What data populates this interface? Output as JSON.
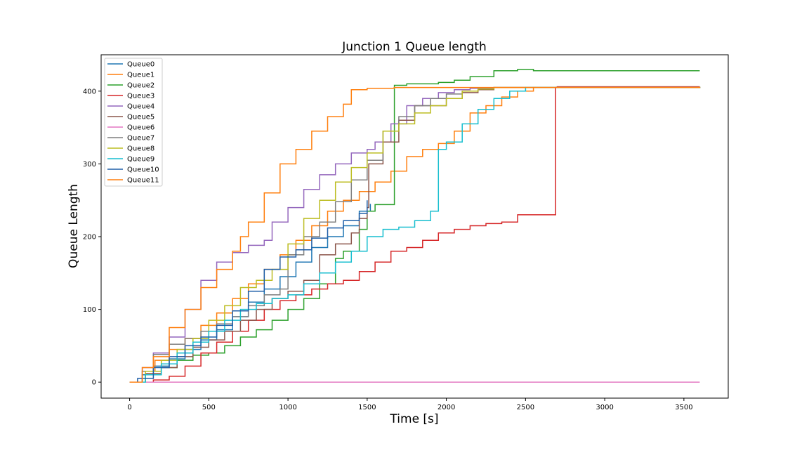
{
  "chart_data": {
    "type": "line",
    "title": "Junction 1 Queue length",
    "xlabel": "Time [s]",
    "ylabel": "Queue Length",
    "xlim": [
      -180,
      3780
    ],
    "ylim": [
      -22,
      450
    ],
    "xticks": [
      0,
      500,
      1000,
      1500,
      2000,
      2500,
      3000,
      3500
    ],
    "yticks": [
      0,
      100,
      200,
      300,
      400
    ],
    "legend_position": "upper left",
    "series": [
      {
        "name": "Queue0",
        "color": "#1f77b4",
        "points": [
          [
            0,
            0
          ],
          [
            80,
            10
          ],
          [
            150,
            22
          ],
          [
            250,
            32
          ],
          [
            350,
            45
          ],
          [
            450,
            58
          ],
          [
            550,
            72
          ],
          [
            650,
            90
          ],
          [
            750,
            110
          ],
          [
            850,
            128
          ],
          [
            950,
            145
          ],
          [
            1050,
            165
          ],
          [
            1150,
            185
          ],
          [
            1250,
            200
          ],
          [
            1350,
            215
          ],
          [
            1450,
            235
          ],
          [
            1520,
            245
          ]
        ]
      },
      {
        "name": "Queue1",
        "color": "#ff7f0e",
        "points": [
          [
            0,
            0
          ],
          [
            80,
            15
          ],
          [
            160,
            30
          ],
          [
            250,
            45
          ],
          [
            350,
            60
          ],
          [
            450,
            78
          ],
          [
            550,
            95
          ],
          [
            650,
            115
          ],
          [
            750,
            135
          ],
          [
            850,
            155
          ],
          [
            950,
            175
          ],
          [
            1050,
            195
          ],
          [
            1150,
            215
          ],
          [
            1250,
            235
          ],
          [
            1350,
            250
          ],
          [
            1450,
            262
          ],
          [
            1550,
            275
          ],
          [
            1650,
            290
          ],
          [
            1750,
            310
          ],
          [
            1850,
            320
          ],
          [
            1950,
            328
          ],
          [
            2050,
            345
          ],
          [
            2150,
            370
          ],
          [
            2250,
            380
          ],
          [
            2350,
            392
          ],
          [
            2450,
            400
          ],
          [
            2550,
            405
          ],
          [
            2700,
            406
          ],
          [
            3600,
            406
          ]
        ]
      },
      {
        "name": "Queue2",
        "color": "#2ca02c",
        "points": [
          [
            0,
            0
          ],
          [
            100,
            10
          ],
          [
            200,
            20
          ],
          [
            300,
            30
          ],
          [
            400,
            37
          ],
          [
            500,
            40
          ],
          [
            600,
            50
          ],
          [
            700,
            62
          ],
          [
            800,
            72
          ],
          [
            900,
            85
          ],
          [
            1000,
            100
          ],
          [
            1100,
            115
          ],
          [
            1200,
            135
          ],
          [
            1300,
            170
          ],
          [
            1350,
            180
          ],
          [
            1450,
            210
          ],
          [
            1500,
            235
          ],
          [
            1550,
            244
          ],
          [
            1660,
            244
          ],
          [
            1672,
            408
          ],
          [
            1750,
            410
          ],
          [
            1850,
            410
          ],
          [
            1950,
            412
          ],
          [
            2050,
            415
          ],
          [
            2150,
            420
          ],
          [
            2250,
            420
          ],
          [
            2300,
            428
          ],
          [
            2450,
            430
          ],
          [
            2550,
            428
          ],
          [
            3600,
            428
          ]
        ]
      },
      {
        "name": "Queue3",
        "color": "#d62728",
        "points": [
          [
            0,
            0
          ],
          [
            150,
            3
          ],
          [
            250,
            8
          ],
          [
            350,
            22
          ],
          [
            450,
            40
          ],
          [
            550,
            55
          ],
          [
            650,
            70
          ],
          [
            750,
            85
          ],
          [
            850,
            100
          ],
          [
            950,
            112
          ],
          [
            1050,
            120
          ],
          [
            1150,
            128
          ],
          [
            1250,
            135
          ],
          [
            1350,
            140
          ],
          [
            1450,
            152
          ],
          [
            1550,
            165
          ],
          [
            1650,
            180
          ],
          [
            1750,
            185
          ],
          [
            1850,
            195
          ],
          [
            1950,
            205
          ],
          [
            2050,
            210
          ],
          [
            2150,
            215
          ],
          [
            2250,
            218
          ],
          [
            2350,
            220
          ],
          [
            2450,
            230
          ],
          [
            2680,
            230
          ],
          [
            2690,
            405
          ],
          [
            2700,
            406
          ],
          [
            3600,
            406
          ]
        ]
      },
      {
        "name": "Queue4",
        "color": "#9467bd",
        "points": [
          [
            0,
            0
          ],
          [
            80,
            20
          ],
          [
            150,
            40
          ],
          [
            250,
            62
          ],
          [
            350,
            100
          ],
          [
            450,
            140
          ],
          [
            550,
            165
          ],
          [
            650,
            178
          ],
          [
            750,
            188
          ],
          [
            850,
            195
          ],
          [
            900,
            220
          ],
          [
            1000,
            240
          ],
          [
            1100,
            265
          ],
          [
            1200,
            285
          ],
          [
            1300,
            300
          ],
          [
            1400,
            315
          ],
          [
            1500,
            320
          ],
          [
            1550,
            330
          ],
          [
            1650,
            355
          ],
          [
            1750,
            380
          ],
          [
            1850,
            390
          ],
          [
            1950,
            398
          ],
          [
            2050,
            402
          ],
          [
            2150,
            404
          ],
          [
            2300,
            405
          ],
          [
            3600,
            406
          ]
        ]
      },
      {
        "name": "Queue5",
        "color": "#8c564b",
        "points": [
          [
            0,
            0
          ],
          [
            100,
            12
          ],
          [
            200,
            20
          ],
          [
            300,
            35
          ],
          [
            400,
            48
          ],
          [
            500,
            58
          ],
          [
            600,
            70
          ],
          [
            700,
            85
          ],
          [
            800,
            100
          ],
          [
            900,
            115
          ],
          [
            1000,
            125
          ],
          [
            1100,
            140
          ],
          [
            1200,
            175
          ],
          [
            1300,
            190
          ],
          [
            1400,
            205
          ],
          [
            1450,
            225
          ],
          [
            1500,
            240
          ],
          [
            1510,
            300
          ],
          [
            1600,
            330
          ],
          [
            1700,
            360
          ],
          [
            1800,
            380
          ],
          [
            1900,
            380
          ],
          [
            2000,
            390
          ],
          [
            2100,
            398
          ],
          [
            2200,
            402
          ],
          [
            2300,
            405
          ],
          [
            3600,
            406
          ]
        ]
      },
      {
        "name": "Queue6",
        "color": "#e377c2",
        "points": [
          [
            0,
            0
          ],
          [
            3600,
            0
          ]
        ]
      },
      {
        "name": "Queue7",
        "color": "#7f7f7f",
        "points": [
          [
            0,
            0
          ],
          [
            80,
            15
          ],
          [
            150,
            38
          ],
          [
            250,
            52
          ],
          [
            350,
            60
          ],
          [
            450,
            70
          ],
          [
            550,
            80
          ],
          [
            650,
            90
          ],
          [
            750,
            105
          ],
          [
            850,
            120
          ],
          [
            950,
            128
          ],
          [
            1000,
            175
          ],
          [
            1100,
            200
          ],
          [
            1200,
            220
          ],
          [
            1300,
            248
          ],
          [
            1400,
            278
          ],
          [
            1500,
            305
          ],
          [
            1600,
            345
          ],
          [
            1700,
            365
          ],
          [
            1800,
            380
          ],
          [
            1900,
            390
          ],
          [
            2000,
            396
          ],
          [
            2100,
            400
          ],
          [
            2200,
            403
          ],
          [
            2300,
            405
          ],
          [
            3600,
            406
          ]
        ]
      },
      {
        "name": "Queue8",
        "color": "#bcbd22",
        "points": [
          [
            0,
            0
          ],
          [
            100,
            15
          ],
          [
            200,
            30
          ],
          [
            300,
            45
          ],
          [
            400,
            60
          ],
          [
            500,
            85
          ],
          [
            600,
            105
          ],
          [
            700,
            130
          ],
          [
            800,
            140
          ],
          [
            900,
            155
          ],
          [
            1000,
            190
          ],
          [
            1100,
            225
          ],
          [
            1200,
            250
          ],
          [
            1300,
            275
          ],
          [
            1400,
            295
          ],
          [
            1500,
            315
          ],
          [
            1600,
            345
          ],
          [
            1700,
            355
          ],
          [
            1800,
            370
          ],
          [
            1900,
            380
          ],
          [
            2000,
            390
          ],
          [
            2100,
            400
          ],
          [
            2200,
            403
          ],
          [
            2300,
            405
          ],
          [
            3600,
            406
          ]
        ]
      },
      {
        "name": "Queue9",
        "color": "#17becf",
        "points": [
          [
            0,
            0
          ],
          [
            100,
            10
          ],
          [
            200,
            25
          ],
          [
            300,
            40
          ],
          [
            400,
            55
          ],
          [
            500,
            70
          ],
          [
            600,
            85
          ],
          [
            700,
            100
          ],
          [
            800,
            108
          ],
          [
            900,
            115
          ],
          [
            1000,
            120
          ],
          [
            1100,
            135
          ],
          [
            1200,
            150
          ],
          [
            1300,
            165
          ],
          [
            1400,
            180
          ],
          [
            1500,
            200
          ],
          [
            1600,
            210
          ],
          [
            1700,
            213
          ],
          [
            1800,
            222
          ],
          [
            1900,
            235
          ],
          [
            1940,
            235
          ],
          [
            1950,
            320
          ],
          [
            2000,
            330
          ],
          [
            2100,
            355
          ],
          [
            2200,
            375
          ],
          [
            2300,
            390
          ],
          [
            2400,
            400
          ],
          [
            2500,
            405
          ],
          [
            3600,
            406
          ]
        ]
      },
      {
        "name": "Queue10",
        "color": "#1f5fa8",
        "points": [
          [
            0,
            0
          ],
          [
            50,
            5
          ],
          [
            150,
            20
          ],
          [
            250,
            35
          ],
          [
            350,
            50
          ],
          [
            450,
            62
          ],
          [
            550,
            78
          ],
          [
            650,
            98
          ],
          [
            750,
            125
          ],
          [
            850,
            155
          ],
          [
            950,
            172
          ],
          [
            1050,
            182
          ],
          [
            1150,
            198
          ],
          [
            1250,
            212
          ],
          [
            1350,
            222
          ],
          [
            1450,
            232
          ],
          [
            1500,
            250
          ]
        ]
      },
      {
        "name": "Queue11",
        "color": "#ff7f0e",
        "points": [
          [
            0,
            0
          ],
          [
            80,
            20
          ],
          [
            150,
            35
          ],
          [
            250,
            75
          ],
          [
            350,
            100
          ],
          [
            450,
            130
          ],
          [
            550,
            155
          ],
          [
            650,
            180
          ],
          [
            700,
            200
          ],
          [
            750,
            220
          ],
          [
            850,
            260
          ],
          [
            950,
            300
          ],
          [
            1050,
            320
          ],
          [
            1150,
            345
          ],
          [
            1250,
            365
          ],
          [
            1350,
            382
          ],
          [
            1400,
            402
          ],
          [
            1500,
            404
          ],
          [
            1670,
            405
          ],
          [
            3600,
            406
          ]
        ]
      }
    ]
  }
}
